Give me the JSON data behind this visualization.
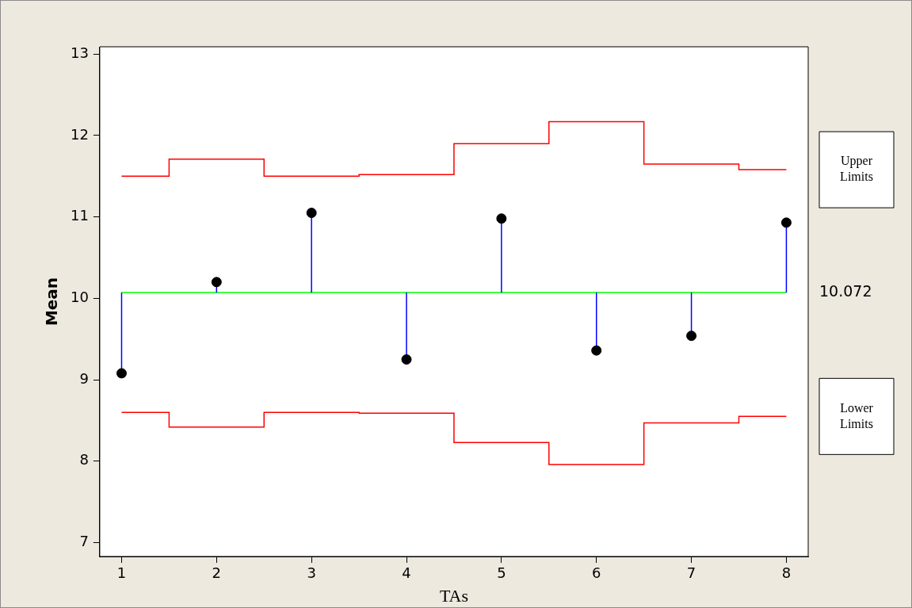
{
  "chart_data": {
    "type": "scatter",
    "xlabel": "TAs",
    "ylabel": "Mean",
    "x": [
      1,
      2,
      3,
      4,
      5,
      6,
      7,
      8
    ],
    "series": [
      {
        "color": "#0000ff",
        "colors": [
          "#000000",
          "#000000",
          "#000000",
          "#000000",
          "#000000",
          "#000000",
          "#000000",
          "#000000"
        ],
        "marker": "circle",
        "values": [
          9.08,
          10.2,
          11.05,
          9.25,
          10.98,
          9.36,
          9.54,
          10.93
        ],
        "errors": [
          [
            9.08,
            10.072
          ],
          [
            10.072,
            10.2
          ],
          [
            10.072,
            11.05
          ],
          [
            9.25,
            10.072
          ],
          [
            10.072,
            10.98
          ],
          [
            9.36,
            10.072
          ],
          [
            9.54,
            10.072
          ],
          [
            10.072,
            10.93
          ]
        ]
      },
      {
        "type": "step",
        "name": "Upper Limits",
        "color": "#ff0000",
        "values": [
          11.5,
          11.71,
          11.5,
          11.52,
          11.9,
          12.17,
          11.65,
          11.58
        ]
      },
      {
        "type": "step",
        "name": "Lower Limits",
        "color": "#ff0000",
        "values": [
          8.6,
          8.42,
          8.6,
          8.59,
          8.23,
          7.96,
          8.47,
          8.55
        ]
      }
    ],
    "ref_lines": [
      {
        "axis": "y",
        "value": 10.072,
        "label": "10.072",
        "color": "#00ff00"
      }
    ],
    "xlim": [
      0.77,
      8.23
    ],
    "xticks": [
      1,
      2,
      3,
      4,
      5,
      6,
      7,
      8
    ],
    "ylim": [
      6.83,
      13.09
    ],
    "yticks": [
      7,
      8,
      9,
      10,
      11,
      12,
      13
    ],
    "grid": false,
    "legend": false
  }
}
